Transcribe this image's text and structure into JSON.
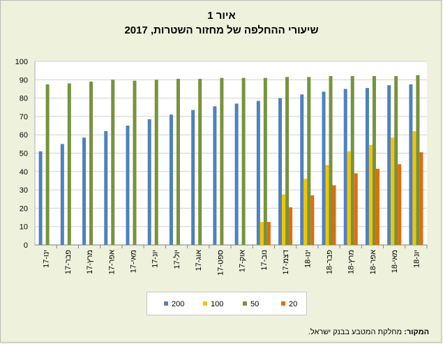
{
  "figure": {
    "title": "איור 1",
    "subtitle": "שיעורי ההחלפה של מחזור השטרות, 2017",
    "source_label": "המקור:",
    "source_text": "מחלקת המטבע בבנק ישראל."
  },
  "chart_data": {
    "type": "bar",
    "title": "איור 1",
    "subtitle": "שיעורי ההחלפה של מחזור השטרות, 2017",
    "xlabel": "",
    "ylabel": "",
    "ylim": [
      0,
      100
    ],
    "yticks": [
      0,
      10,
      20,
      30,
      40,
      50,
      60,
      70,
      80,
      90,
      100
    ],
    "grid": true,
    "legend_position": "bottom",
    "categories": [
      "ינו-17",
      "פבר-17",
      "מרץ-17",
      "אפר-17",
      "מאי-17",
      "יונ-17",
      "יול-17",
      "אוג-17",
      "ספט-17",
      "אוק-17",
      "נוב-17",
      "דצמ-17",
      "ינו-18",
      "פבר-18",
      "מרץ-18",
      "אפר-18",
      "מאי-18",
      "יונ-18"
    ],
    "series": [
      {
        "name": "200",
        "color": "#4f81bd",
        "values": [
          51,
          55,
          58.5,
          62,
          65,
          68.5,
          71,
          73.5,
          75.5,
          77,
          78.5,
          80,
          82,
          83.5,
          85,
          85.5,
          87,
          87.5
        ]
      },
      {
        "name": "100",
        "color": "#f2c500",
        "values": [
          null,
          null,
          null,
          null,
          null,
          null,
          null,
          null,
          null,
          null,
          12.5,
          27.5,
          36,
          43.5,
          51,
          54.5,
          58.5,
          62
        ]
      },
      {
        "name": "50",
        "color": "#77933c",
        "values": [
          87.5,
          88,
          89,
          90,
          89.5,
          90,
          90.5,
          90.5,
          91,
          91,
          91,
          91.5,
          91.5,
          92,
          92,
          92,
          92,
          92.5
        ]
      },
      {
        "name": "20",
        "color": "#e36c09",
        "values": [
          null,
          null,
          null,
          null,
          null,
          null,
          null,
          null,
          null,
          null,
          12.5,
          20.5,
          27,
          32.5,
          39,
          41.5,
          44,
          50.5
        ]
      }
    ]
  }
}
